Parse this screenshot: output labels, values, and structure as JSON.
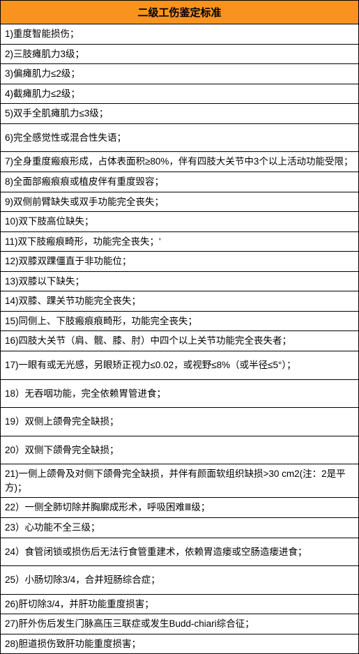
{
  "table": {
    "title": "二级工伤鉴定标准",
    "header_bg": "#f7931e",
    "border_color": "#000000",
    "rows": [
      {
        "text": "1)重度智能损伤；",
        "tall": false
      },
      {
        "text": "2)三肢瘫肌力3级；",
        "tall": false
      },
      {
        "text": "3)偏瘫肌力≤2级；",
        "tall": false
      },
      {
        "text": "4)截瘫肌力≤2级；",
        "tall": false
      },
      {
        "text": "5)双手全肌瘫肌力≤3级；",
        "tall": false
      },
      {
        "text": "6)完全感觉性或混合性失语；",
        "tall": true
      },
      {
        "text": "7)全身重度瘢痕形成，占体表面积≥80%，伴有四肢大关节中3个以上活动功能受限；",
        "tall": false
      },
      {
        "text": "8)全面部瘢痕痕或植皮伴有重度毁容；",
        "tall": false
      },
      {
        "text": "9)双侧前臂缺失或双手功能完全丧失；",
        "tall": false
      },
      {
        "text": "10)双下肢高位缺失；",
        "tall": false
      },
      {
        "text": "11)双下肢瘢痕畸形，功能完全丧失；'",
        "tall": false
      },
      {
        "text": "12)双膝双踝僵直于非功能位；",
        "tall": false
      },
      {
        "text": "13)双膝以下缺失；",
        "tall": false
      },
      {
        "text": "14)双膝、踝关节功能完全丧失；",
        "tall": false
      },
      {
        "text": "15)同侧上、下肢瘢痕痕畸形，功能完全丧失；",
        "tall": false
      },
      {
        "text": "16)四肢大关节（肩、髋、膝、肘）中四个以上关节功能完全丧失者；",
        "tall": false
      },
      {
        "text": "17)一眼有或无光感，另眼矫正视力≤0.02，或视野≤8%（或半径≤5°）；",
        "tall": true
      },
      {
        "text": "18）无吞咽功能，完全依赖胃管进食；",
        "tall": true
      },
      {
        "text": "19）双侧上颌骨完全缺损；",
        "tall": true
      },
      {
        "text": "20）双侧下颌骨完全缺损；",
        "tall": true
      },
      {
        "text": "21)一侧上颌骨及对侧下颌骨完全缺损，并伴有颜面软组织缺损>30 cm2(注：2是平方)；",
        "tall": false
      },
      {
        "text": "22）一侧全肺切除并胸廓成形术，呼吸困难Ⅲ级；",
        "tall": false
      },
      {
        "text": "23）心功能不全三级；",
        "tall": false
      },
      {
        "text": "24）食管闭锁或损伤后无法行食管重建术，依赖胃造瘘或空肠造瘘进食；",
        "tall": true
      },
      {
        "text": "25）小肠切除3/4，合并短肠综合症；",
        "tall": true
      },
      {
        "text": "26)肝切除3/4，并肝功能重度损害；",
        "tall": false
      },
      {
        "text": "27)肝外伤后发生门脉高压三联症或发生Budd-chiari综合征；",
        "tall": false
      },
      {
        "text": "28)胆道损伤致肝功能重度损害；",
        "tall": false
      }
    ]
  }
}
